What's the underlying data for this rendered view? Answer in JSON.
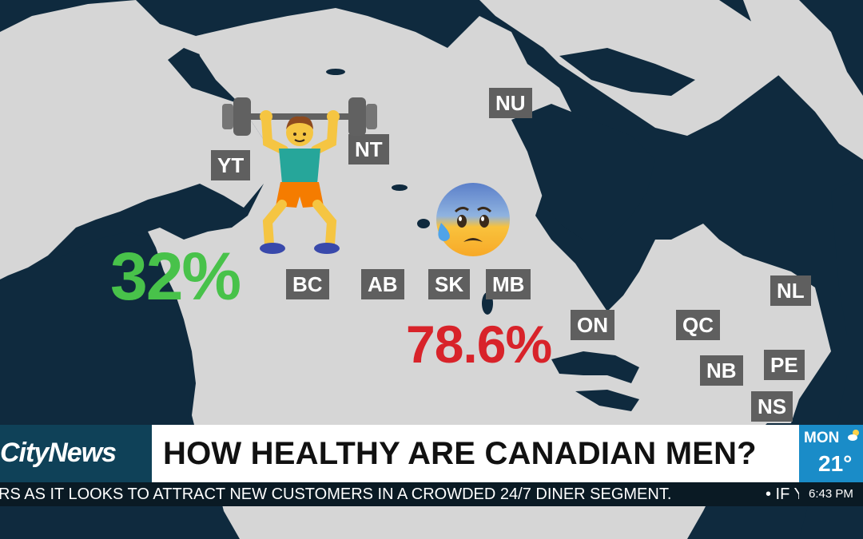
{
  "map": {
    "provinces": [
      "YT",
      "NT",
      "NU",
      "BC",
      "AB",
      "SK",
      "MB",
      "ON",
      "QC",
      "NL",
      "NB",
      "PE",
      "NS"
    ],
    "colors": {
      "water": "#0f2a3e",
      "land": "#d6d6d6",
      "label_bg": "#5f5f5f"
    }
  },
  "stats": {
    "green": "32%",
    "red": "78.6%"
  },
  "emoji": {
    "left": "weightlifter",
    "right": "anxious-sweat-face"
  },
  "lower_third": {
    "logo": "CityNews",
    "headline": "HOW HEALTHY ARE CANADIAN MEN?",
    "ticker": "RS AS IT LOOKS TO ATTRACT NEW CUSTOMERS IN A CROWDED 24/7 DINER SEGMENT.",
    "ticker_next": "• IF YC",
    "weather_day": "MON",
    "weather_temp": "21°",
    "weather_icon": "partly-sunny-icon",
    "time": "6:43 PM"
  }
}
